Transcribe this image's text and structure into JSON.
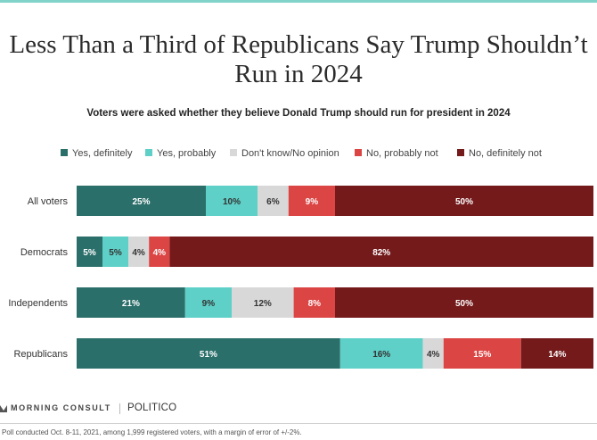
{
  "title_line1": "Less Than a Third of Republicans Say Trump Shouldn’t",
  "title_line2": "Run in 2024",
  "subtitle": "Voters were asked whether they believe Donald Trump should run for president in 2024",
  "chart_data": {
    "type": "bar",
    "orientation": "horizontal",
    "stacked": true,
    "categories": [
      "All voters",
      "Democrats",
      "Independents",
      "Republicans"
    ],
    "series": [
      {
        "name": "Yes, definitely",
        "color": "#2b6f6a",
        "values": [
          25,
          5,
          21,
          51
        ],
        "labels": [
          "25%",
          "5%",
          "21%",
          "51%"
        ]
      },
      {
        "name": "Yes, probably",
        "color": "#5ed0c7",
        "values": [
          10,
          5,
          9,
          16
        ],
        "labels": [
          "10%",
          "5%",
          "9%",
          "16%"
        ]
      },
      {
        "name": "Don't know/No opinion",
        "color": "#d8d8d8",
        "values": [
          6,
          4,
          12,
          4
        ],
        "labels": [
          "6%",
          "4%",
          "12%",
          "4%"
        ]
      },
      {
        "name": "No, probably not",
        "color": "#db4544",
        "values": [
          9,
          4,
          8,
          15
        ],
        "labels": [
          "9%",
          "4%",
          "8%",
          "15%"
        ]
      },
      {
        "name": "No, definitely not",
        "color": "#741a1b",
        "values": [
          50,
          82,
          50,
          14
        ],
        "labels": [
          "50%",
          "82%",
          "50%",
          "14%"
        ]
      }
    ],
    "xlim": [
      0,
      100
    ],
    "legend_position": "top",
    "grid": false
  },
  "source_brand": "MORNING CONSULT",
  "partner_brand": "POLITICO",
  "footnote": "Poll conducted Oct. 8-11, 2021, among 1,999 registered voters, with a margin of error of +/-2%."
}
